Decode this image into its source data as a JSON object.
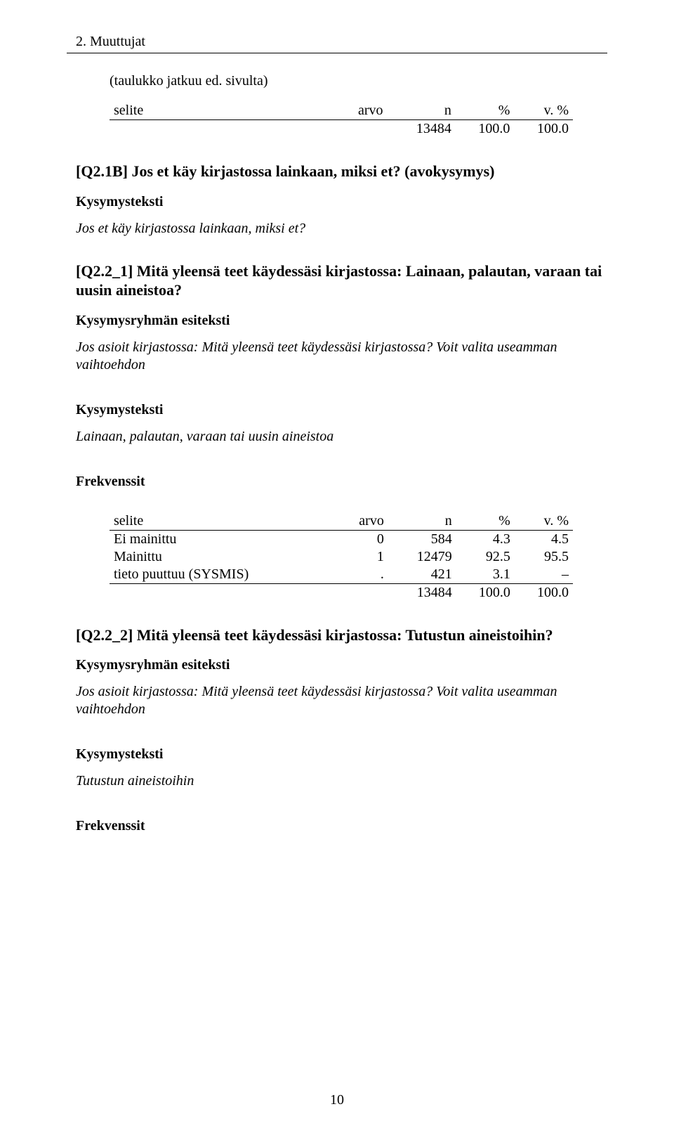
{
  "section_heading": "2. Muuttujat",
  "cont_note": "(taulukko jatkuu ed. sivulta)",
  "table_headers": {
    "selite": "selite",
    "arvo": "arvo",
    "n": "n",
    "pct": "%",
    "vpct": "v. %"
  },
  "table_top": {
    "total": {
      "selite": "",
      "arvo": "",
      "n": "13484",
      "pct": "100.0",
      "vpct": "100.0"
    }
  },
  "q21b": {
    "heading": "[Q2.1B] Jos et käy kirjastossa lainkaan, miksi et?  (avokysymys)",
    "label_kys": "Kysymysteksti",
    "body": "Jos et käy kirjastossa lainkaan, miksi et?"
  },
  "q22_1": {
    "heading": "[Q2.2_1] Mitä yleensä teet käydessäsi kirjastossa: Lainaan, palautan, varaan tai uusin aineistoa?",
    "label_grp": "Kysymysryhmän esiteksti",
    "grp_body": "Jos asioit kirjastossa: Mitä yleensä teet käydessäsi kirjastossa? Voit valita useamman vaihtoehdon",
    "label_kys": "Kysymysteksti",
    "body": "Lainaan, palautan, varaan tai uusin aineistoa",
    "label_freq": "Frekvenssit",
    "rows": [
      {
        "selite": "Ei mainittu",
        "arvo": "0",
        "n": "584",
        "pct": "4.3",
        "vpct": "4.5"
      },
      {
        "selite": "Mainittu",
        "arvo": "1",
        "n": "12479",
        "pct": "92.5",
        "vpct": "95.5"
      },
      {
        "selite": "tieto puuttuu (SYSMIS)",
        "arvo": ".",
        "n": "421",
        "pct": "3.1",
        "vpct": "–"
      }
    ],
    "total": {
      "selite": "",
      "arvo": "",
      "n": "13484",
      "pct": "100.0",
      "vpct": "100.0"
    }
  },
  "q22_2": {
    "heading": "[Q2.2_2] Mitä yleensä teet käydessäsi kirjastossa: Tutustun aineistoihin?",
    "label_grp": "Kysymysryhmän esiteksti",
    "grp_body": "Jos asioit kirjastossa: Mitä yleensä teet käydessäsi kirjastossa? Voit valita useamman vaihtoehdon",
    "label_kys": "Kysymysteksti",
    "body": "Tutustun aineistoihin",
    "label_freq": "Frekvenssit"
  },
  "pagenum": "10"
}
